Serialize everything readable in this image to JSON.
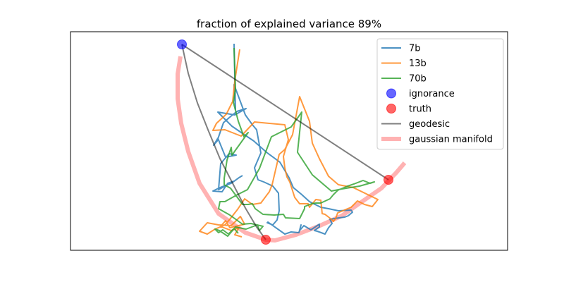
{
  "chart_data": {
    "type": "line",
    "title": "fraction of explained variance 89%",
    "xlabel": "",
    "ylabel": "",
    "xlim": [
      0,
      620
    ],
    "ylim": [
      0,
      310
    ],
    "xticks": [],
    "yticks": [],
    "grid": false,
    "legend_position": "top-right",
    "series": [
      {
        "name": "7b",
        "kind": "line",
        "color": "#1f77b4",
        "x": [
          232,
          234,
          232,
          248,
          258,
          264,
          270,
          261,
          266,
          274,
          287,
          295,
          296,
          293,
          287,
          279,
          280,
          304,
          313,
          324,
          327,
          325,
          331,
          341,
          353,
          353,
          346,
          350,
          361,
          366,
          371,
          368,
          381,
          389,
          394,
          400,
          398,
          380,
          366,
          355,
          339,
          328,
          316,
          310,
          297,
          278,
          260,
          248,
          229,
          209,
          233,
          249,
          236,
          225,
          217,
          208,
          203,
          209,
          220,
          235,
          225,
          213,
          210,
          232,
          223,
          215,
          202,
          212,
          228,
          239,
          244
        ],
        "y": [
          293,
          200,
          235,
          192,
          178,
          171,
          138,
          117,
          100,
          97,
          91,
          81,
          56,
          43,
          36,
          39,
          40,
          23,
          26,
          25,
          36,
          28,
          35,
          29,
          37,
          33,
          28,
          27,
          23,
          32,
          38,
          44,
          46,
          47,
          49,
          54,
          57,
          56,
          59,
          61,
          69,
          79,
          89,
          103,
          125,
          139,
          155,
          163,
          176,
          196,
          192,
          201,
          197,
          188,
          181,
          155,
          149,
          159,
          132,
          135,
          137,
          123,
          86,
          98,
          95,
          83,
          84,
          89,
          95,
          103,
          106
        ]
      },
      {
        "name": "13b",
        "kind": "line",
        "color": "#ff7f0e",
        "x": [
          240,
          233,
          230,
          221,
          207,
          202,
          219,
          242,
          261,
          304,
          309,
          302,
          304,
          307,
          311,
          318,
          325,
          337,
          339,
          348,
          355,
          357,
          361,
          370,
          373,
          376,
          379,
          386,
          398,
          407,
          417,
          428,
          436,
          401,
          380,
          366,
          353,
          343,
          339,
          325,
          315,
          304,
          296,
          286,
          282,
          270,
          258,
          247,
          237,
          226,
          219,
          205,
          194,
          183,
          194,
          210,
          228,
          241,
          247,
          226,
          220,
          212,
          215,
          228,
          239,
          233,
          243
        ],
        "y": [
          285,
          240,
          211,
          193,
          180,
          170,
          171,
          162,
          182,
          178,
          157,
          133,
          117,
          104,
          97,
          75,
          66,
          66,
          61,
          72,
          71,
          52,
          51,
          44,
          41,
          45,
          53,
          56,
          61,
          70,
          65,
          62,
          72,
          89,
          93,
          105,
          130,
          152,
          183,
          218,
          164,
          143,
          136,
          93,
          83,
          67,
          65,
          73,
          58,
          44,
          36,
          30,
          23,
          27,
          39,
          36,
          35,
          48,
          37,
          32,
          42,
          33,
          33,
          28,
          32,
          22,
          19
        ]
      },
      {
        "name": "70b",
        "kind": "line",
        "color": "#2ca02c",
        "x": [
          232,
          234,
          231,
          238,
          246,
          252,
          229,
          228,
          222,
          218,
          218,
          227,
          233,
          244,
          252,
          258,
          262,
          273,
          289,
          302,
          305,
          325,
          332,
          332,
          342,
          348,
          355,
          368,
          373,
          379,
          393,
          402,
          415,
          425,
          431,
          410,
          385,
          370,
          343,
          322,
          328,
          313,
          285,
          268,
          251,
          235,
          219,
          212,
          210,
          226,
          244,
          256,
          273,
          268,
          265,
          249,
          234,
          223,
          211,
          205,
          210,
          216,
          224,
          232,
          238
        ],
        "y": [
          287,
          228,
          210,
          183,
          161,
          167,
          135,
          146,
          128,
          102,
          93,
          88,
          80,
          65,
          65,
          66,
          59,
          51,
          50,
          51,
          46,
          45,
          59,
          62,
          66,
          67,
          67,
          73,
          79,
          85,
          91,
          94,
          99,
          95,
          97,
          91,
          87,
          84,
          107,
          139,
          196,
          175,
          161,
          116,
          86,
          78,
          69,
          69,
          59,
          50,
          37,
          38,
          34,
          28,
          36,
          30,
          33,
          20,
          28,
          30,
          25,
          29,
          23,
          31,
          24
        ]
      },
      {
        "name": "ignorance",
        "kind": "scatter",
        "color": "#0000ff",
        "x": [
          158
        ],
        "y": [
          292
        ]
      },
      {
        "name": "truth",
        "kind": "scatter",
        "color": "#ff0000",
        "x": [
          277,
          451
        ],
        "y": [
          15,
          100
        ]
      },
      {
        "name": "geodesic",
        "kind": "line",
        "color": "#000000",
        "x": [
          158,
          451
        ],
        "y": [
          292,
          100
        ]
      },
      {
        "name": "",
        "kind": "line",
        "color": "#000000",
        "x": [
          158,
          167,
          180,
          195,
          212,
          230,
          248,
          264,
          277
        ],
        "y": [
          292,
          251,
          209,
          171,
          130,
          95,
          60,
          33,
          15
        ]
      },
      {
        "name": "gaussian manifold",
        "kind": "line",
        "color": "#ff0000",
        "x": [
          156,
          152,
          152,
          157,
          167,
          183,
          210,
          248,
          277,
          290,
          320,
          354,
          385,
          415,
          441,
          462,
          474
        ],
        "y": [
          275,
          250,
          215,
          180,
          140,
          95,
          52,
          25,
          15,
          14,
          22,
          35,
          49,
          70,
          88,
          110,
          124
        ]
      }
    ]
  }
}
